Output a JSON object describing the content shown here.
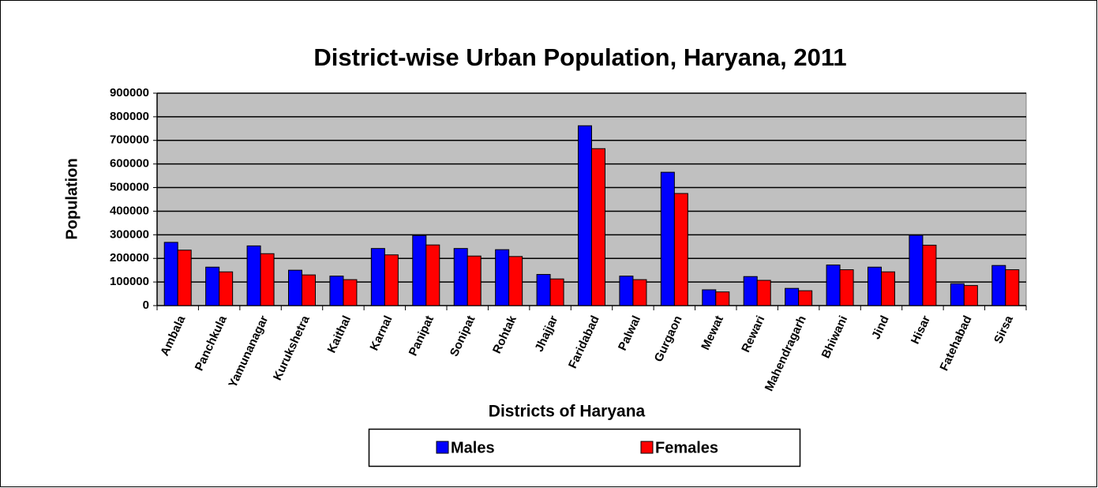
{
  "chart_data": {
    "type": "bar",
    "title": "District-wise Urban Population,  Haryana, 2011",
    "x_label": "Districts of Haryana",
    "y_label": "Population",
    "categories": [
      "Ambala",
      "Panchkula",
      "Yamunanagar",
      "Kurukshetra",
      "Kaithal",
      "Karnal",
      "Panipat",
      "Sonipat",
      "Rohtak",
      "Jhajjar",
      "Faridabad",
      "Palwal",
      "Gurgaon",
      "Mewat",
      "Rewari",
      "Mahendragarh",
      "Bhiwani",
      "Jind",
      "Hisar",
      "Fatehabad",
      "Sirsa"
    ],
    "series": [
      {
        "name": "Males",
        "color": "#0000ff",
        "values": [
          268000,
          163000,
          253000,
          150000,
          125000,
          242000,
          297000,
          242000,
          237000,
          132000,
          762000,
          125000,
          565000,
          67000,
          123000,
          73000,
          172000,
          163000,
          298000,
          93000,
          170000
        ]
      },
      {
        "name": "Females",
        "color": "#ff0000",
        "values": [
          235000,
          143000,
          220000,
          130000,
          110000,
          215000,
          257000,
          210000,
          208000,
          113000,
          665000,
          110000,
          475000,
          58000,
          107000,
          63000,
          152000,
          143000,
          256000,
          85000,
          152000
        ]
      }
    ],
    "ylim": [
      0,
      900000
    ],
    "yticks": [
      0,
      100000,
      200000,
      300000,
      400000,
      500000,
      600000,
      700000,
      800000,
      900000
    ],
    "grid": true,
    "legend": "bottom"
  }
}
